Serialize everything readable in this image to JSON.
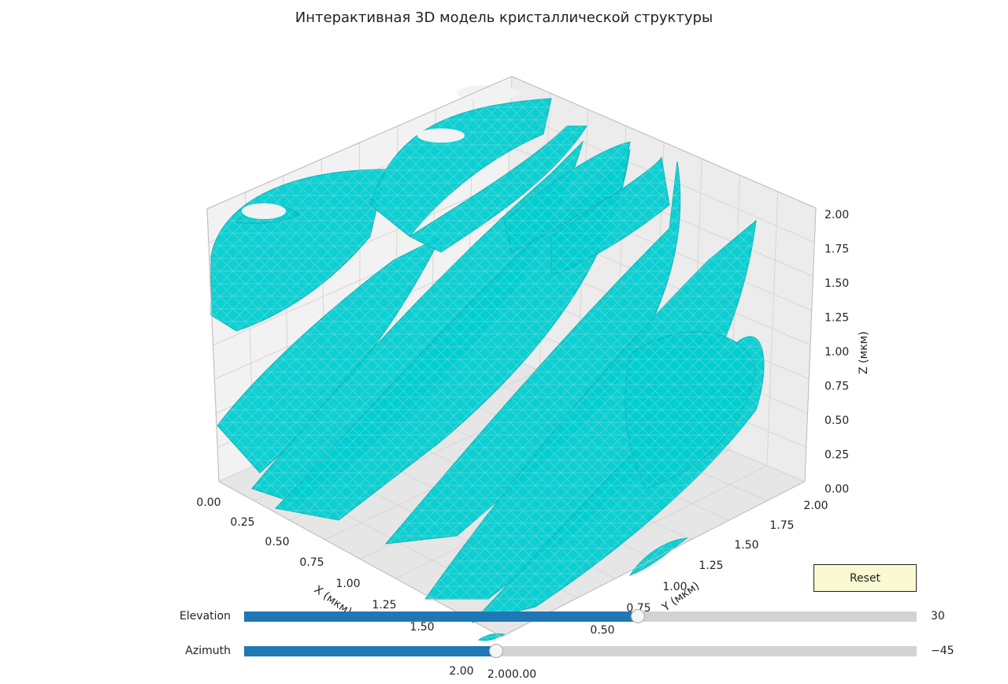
{
  "title": "Интерактивная 3D модель кристаллической структуры",
  "chart_data": {
    "type": "surface",
    "xlabel": "X (мкм)",
    "ylabel": "Y (мкм)",
    "zlabel": "Z (мкм)",
    "xlim": [
      0.0,
      2.0
    ],
    "ylim": [
      0.0,
      2.0
    ],
    "zlim": [
      0.0,
      2.0
    ],
    "x_ticks": [
      "0.00",
      "0.25",
      "0.50",
      "0.75",
      "1.00",
      "1.25",
      "1.50",
      "2.00"
    ],
    "y_ticks": [
      "0.50",
      "0.75",
      "1.00",
      "1.25",
      "1.50",
      "1.75",
      "2.00",
      "2.000.00"
    ],
    "z_ticks": [
      "0.00",
      "0.25",
      "0.50",
      "0.75",
      "1.00",
      "1.25",
      "1.50",
      "1.75",
      "2.00"
    ],
    "surface_color": "#00CED1",
    "edge_color": "#5fb8bb",
    "grid": true,
    "view": {
      "elevation": 30,
      "azimuth": -45
    }
  },
  "controls": {
    "elevation": {
      "label": "Elevation",
      "value": "30",
      "fraction": 0.585
    },
    "azimuth": {
      "label": "Azimuth",
      "value": "−45",
      "fraction": 0.375
    },
    "reset_label": "Reset"
  }
}
